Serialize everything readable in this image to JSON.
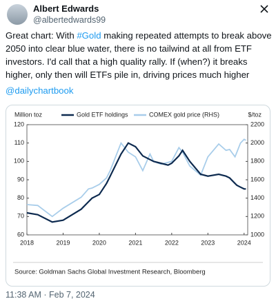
{
  "author": {
    "name": "Albert Edwards",
    "handle": "@albertedwards99"
  },
  "tweet": {
    "before": "Great chart: With ",
    "hashtag": "#Gold",
    "after": " making repeated attempts to break above 2050 into clear blue water, there is no tailwind at all from ETF investors. I'd call that a high quality rally. If (when?) it breaks higher, only then will ETFs pile in, driving prices much higher",
    "mention": "@dailychartbook"
  },
  "timestamp": "11:38 AM · Feb 7, 2024",
  "chart_data": {
    "type": "line",
    "ylabel": "Million toz",
    "y2label": "$/toz",
    "source": "Source: Goldman Sachs Global Investment Research, Bloomberg",
    "x": [
      2018,
      2018.3,
      2018.7,
      2019,
      2019.5,
      2019.7,
      2019.8,
      2020,
      2020.2,
      2020.3,
      2020.6,
      2020.8,
      2021,
      2021.2,
      2021.4,
      2021.5,
      2021.7,
      2021.9,
      2022,
      2022.2,
      2022.3,
      2022.5,
      2022.8,
      2023,
      2023.3,
      2023.5,
      2023.6,
      2023.75,
      2023.8,
      2023.9,
      2024,
      2024.05
    ],
    "series": [
      {
        "name": "Gold ETF holdings",
        "color": "#0d2a4f",
        "values": [
          72,
          71,
          67,
          68,
          74,
          78,
          80,
          82,
          88,
          92,
          104,
          110,
          108,
          103,
          101,
          100,
          99,
          98,
          99,
          103,
          106,
          100,
          93,
          92,
          93,
          92,
          91,
          88,
          87,
          86,
          85,
          85
        ]
      },
      {
        "name": "COMEX gold price (RHS)",
        "color": "#a8cdea",
        "axis": "y2",
        "values": [
          1330,
          1320,
          1200,
          1290,
          1410,
          1500,
          1510,
          1550,
          1620,
          1700,
          2000,
          1900,
          1850,
          1700,
          1880,
          1800,
          1770,
          1790,
          1800,
          1950,
          1900,
          1750,
          1650,
          1850,
          1990,
          1920,
          1930,
          1850,
          1900,
          2000,
          2040,
          2030
        ]
      }
    ],
    "xlim": [
      2018,
      2024.1
    ],
    "xticks": [
      2018,
      2019,
      2020,
      2021,
      2022,
      2023,
      2024
    ],
    "ylim": [
      60,
      120
    ],
    "yticks": [
      60,
      70,
      80,
      90,
      100,
      110,
      120
    ],
    "y2lim": [
      1000,
      2200
    ],
    "y2ticks": [
      1000,
      1200,
      1400,
      1600,
      1800,
      2000,
      2200
    ]
  }
}
